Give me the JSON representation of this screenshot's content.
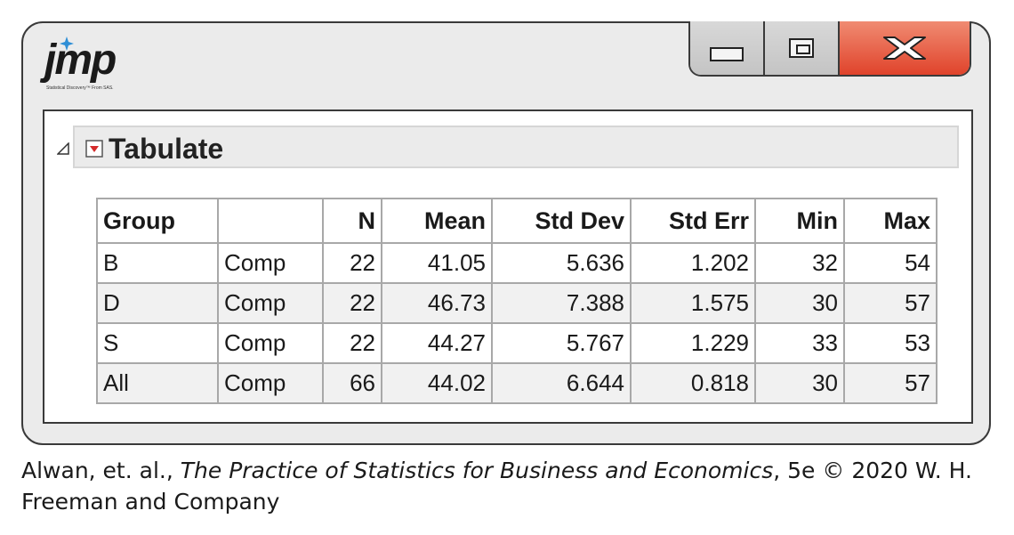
{
  "app": {
    "logo_text": "jmp",
    "logo_tagline": "Statistical Discovery™ From SAS."
  },
  "window_controls": {
    "minimize_icon": "minimize-icon",
    "maximize_icon": "maximize-icon",
    "close_icon": "close-icon"
  },
  "report": {
    "title": "Tabulate",
    "disclosure_icon": "disclosure-triangle-icon",
    "menu_icon": "red-triangle-menu-icon"
  },
  "table": {
    "headers": [
      "Group",
      "",
      "N",
      "Mean",
      "Std Dev",
      "Std Err",
      "Min",
      "Max"
    ],
    "rows": [
      [
        "B",
        "Comp",
        "22",
        "41.05",
        "5.636",
        "1.202",
        "32",
        "54"
      ],
      [
        "D",
        "Comp",
        "22",
        "46.73",
        "7.388",
        "1.575",
        "30",
        "57"
      ],
      [
        "S",
        "Comp",
        "22",
        "44.27",
        "5.767",
        "1.229",
        "33",
        "53"
      ],
      [
        "All",
        "Comp",
        "66",
        "44.02",
        "6.644",
        "0.818",
        "30",
        "57"
      ]
    ]
  },
  "caption": {
    "prefix": "Alwan, et. al., ",
    "book_title": "The Practice of Statistics for Business and Economics",
    "suffix": ", 5e © 2020 W. H. Freeman and Company"
  },
  "colors": {
    "close_button": "#e0432b",
    "menu_icon": "#d42a2a",
    "logo_accent": "#2f8fd6"
  }
}
